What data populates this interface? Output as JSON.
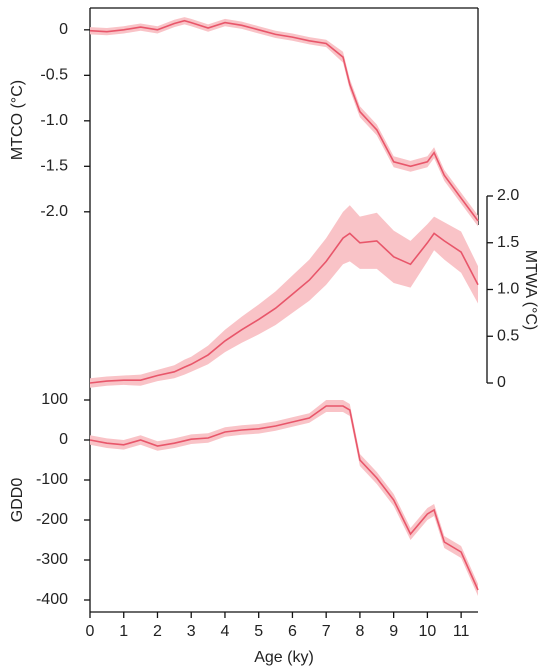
{
  "chart_data": {
    "type": "line",
    "xlabel": "Age (ky)",
    "x": [
      0,
      0.5,
      1,
      1.5,
      2,
      2.5,
      2.8,
      3,
      3.5,
      4,
      4.5,
      5,
      5.5,
      6,
      6.5,
      7,
      7.5,
      7.7,
      8,
      8.5,
      9,
      9.5,
      10,
      10.2,
      10.5,
      11,
      11.5
    ],
    "xlim": [
      0,
      11.5
    ],
    "xticks": [
      0,
      1,
      2,
      3,
      4,
      5,
      6,
      7,
      8,
      9,
      10,
      11
    ],
    "panels": [
      {
        "ylabel": "MTCO (°C)",
        "side": "left",
        "ylim": [
          -2.2,
          0.24
        ],
        "yticks": [
          0,
          -0.5,
          {
            "value": -1,
            "label": "-1.0"
          },
          -1.5,
          {
            "value": -2,
            "label": "-2.0"
          }
        ],
        "color": "#e8566a",
        "band_color": "#f9c3c7",
        "values": [
          -0.01,
          -0.02,
          0,
          0.03,
          0,
          0.07,
          0.1,
          0.08,
          0.02,
          0.08,
          0.05,
          0,
          -0.05,
          -0.08,
          -0.12,
          -0.15,
          -0.3,
          -0.6,
          -0.9,
          -1.1,
          -1.45,
          -1.5,
          -1.45,
          -1.35,
          -1.6,
          -1.85,
          -2.1
        ],
        "lower": [
          -0.05,
          -0.06,
          -0.04,
          -0.01,
          -0.04,
          0.03,
          0.06,
          0.04,
          -0.02,
          0.04,
          0.01,
          -0.04,
          -0.09,
          -0.12,
          -0.16,
          -0.19,
          -0.36,
          -0.66,
          -0.96,
          -1.16,
          -1.51,
          -1.56,
          -1.51,
          -1.41,
          -1.66,
          -1.91,
          -2.16
        ],
        "upper": [
          0.03,
          0.02,
          0.04,
          0.07,
          0.04,
          0.11,
          0.14,
          0.12,
          0.06,
          0.12,
          0.09,
          0.04,
          -0.01,
          -0.04,
          -0.08,
          -0.11,
          -0.24,
          -0.54,
          -0.84,
          -1.04,
          -1.39,
          -1.44,
          -1.39,
          -1.29,
          -1.54,
          -1.79,
          -2.04
        ]
      },
      {
        "ylabel": "MTWA (°C)",
        "side": "right",
        "ylim": [
          0,
          2
        ],
        "yticks": [
          {
            "value": 2,
            "label": "2.0"
          },
          1.5,
          {
            "value": 1,
            "label": "1.0"
          },
          0.5,
          0
        ],
        "color": "#e8566a",
        "band_color": "#f9c3c7",
        "values": [
          0,
          0.02,
          0.03,
          0.03,
          0.08,
          0.12,
          0.17,
          0.2,
          0.3,
          0.45,
          0.57,
          0.68,
          0.8,
          0.95,
          1.1,
          1.3,
          1.55,
          1.6,
          1.5,
          1.52,
          1.35,
          1.27,
          1.5,
          1.6,
          1.52,
          1.4,
          1.05
        ],
        "lower": [
          -0.05,
          -0.03,
          -0.02,
          -0.03,
          0.02,
          0.05,
          0.09,
          0.12,
          0.2,
          0.33,
          0.43,
          0.52,
          0.62,
          0.75,
          0.88,
          1.05,
          1.27,
          1.3,
          1.22,
          1.22,
          1.07,
          1.02,
          1.3,
          1.42,
          1.32,
          1.18,
          0.85
        ],
        "upper": [
          0.05,
          0.07,
          0.08,
          0.09,
          0.14,
          0.19,
          0.25,
          0.28,
          0.4,
          0.57,
          0.71,
          0.84,
          0.98,
          1.15,
          1.32,
          1.55,
          1.83,
          1.9,
          1.78,
          1.82,
          1.63,
          1.52,
          1.7,
          1.78,
          1.72,
          1.62,
          1.25
        ]
      },
      {
        "ylabel": "GDD0",
        "side": "left",
        "ylim": [
          -430,
          100
        ],
        "yticks": [
          100,
          0,
          -100,
          -200,
          -300,
          -400
        ],
        "color": "#e8566a",
        "band_color": "#f9c3c7",
        "values": [
          0,
          -8,
          -12,
          0,
          -15,
          -8,
          -2,
          2,
          5,
          20,
          25,
          28,
          35,
          45,
          55,
          85,
          85,
          75,
          -50,
          -95,
          -150,
          -235,
          -185,
          -175,
          -255,
          -280,
          -375
        ],
        "lower": [
          -12,
          -20,
          -24,
          -12,
          -27,
          -20,
          -14,
          -10,
          -7,
          8,
          13,
          16,
          23,
          33,
          43,
          70,
          70,
          60,
          -65,
          -110,
          -165,
          -250,
          -200,
          -190,
          -270,
          -295,
          -390
        ],
        "upper": [
          12,
          4,
          0,
          12,
          -3,
          4,
          10,
          14,
          17,
          32,
          37,
          40,
          47,
          57,
          67,
          100,
          100,
          90,
          -35,
          -80,
          -135,
          -220,
          -170,
          -160,
          -240,
          -265,
          -360
        ]
      }
    ]
  }
}
